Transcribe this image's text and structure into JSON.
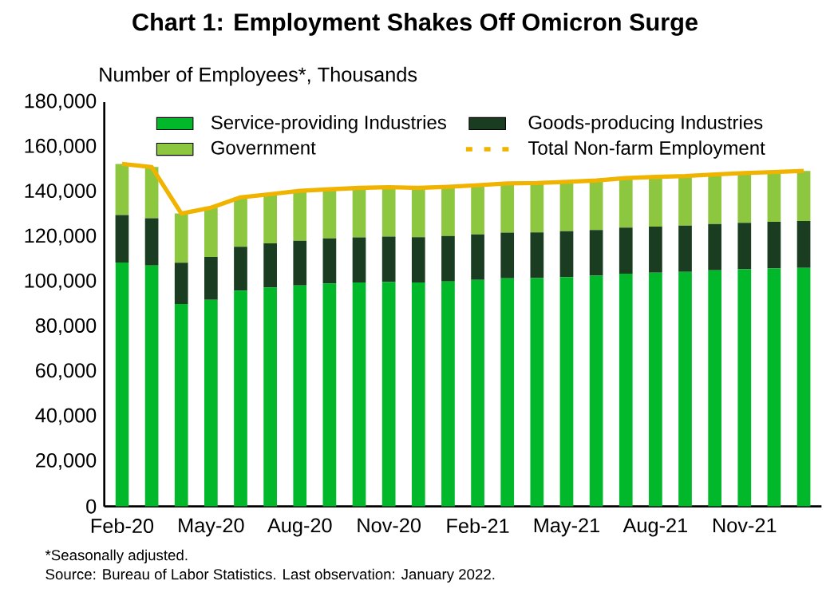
{
  "chart_data": {
    "type": "bar",
    "stacked": true,
    "title": "Chart 1: Employment Shakes Off Omicron Surge",
    "ylabel": "Number of Employees*, Thousands",
    "categories": [
      "Feb-20",
      null,
      null,
      "May-20",
      null,
      null,
      "Aug-20",
      null,
      null,
      "Nov-20",
      null,
      null,
      "Feb-21",
      null,
      null,
      "May-21",
      null,
      null,
      "Aug-21",
      null,
      null,
      "Nov-21",
      null,
      null
    ],
    "series": [
      {
        "name": "Service-providing Industries",
        "color": "#00b82a",
        "values": [
          108600,
          107300,
          90100,
          92000,
          96100,
          97500,
          98400,
          99300,
          99700,
          99900,
          99700,
          100200,
          100900,
          101600,
          101700,
          102100,
          102700,
          103600,
          104100,
          104400,
          105100,
          105600,
          105900,
          106200
        ]
      },
      {
        "name": "Goods-producing Industries",
        "color": "#1a3d22",
        "values": [
          21100,
          21000,
          18400,
          19100,
          19500,
          19600,
          19900,
          20000,
          20100,
          20200,
          20200,
          20200,
          20200,
          20300,
          20300,
          20400,
          20400,
          20500,
          20500,
          20600,
          20600,
          20700,
          20800,
          20900
        ]
      },
      {
        "name": "Government",
        "color": "#8dc63f",
        "values": [
          22800,
          22800,
          21900,
          21900,
          22000,
          21900,
          22200,
          21900,
          22000,
          22000,
          21900,
          21900,
          21900,
          21900,
          22000,
          22000,
          22000,
          22100,
          22100,
          22100,
          22100,
          22100,
          22200,
          22300
        ]
      },
      {
        "name": "Total Non-farm Employment",
        "type": "line",
        "color": "#f0b400",
        "values": [
          152500,
          151100,
          130400,
          133000,
          137600,
          139000,
          140500,
          141200,
          141800,
          142100,
          141800,
          142300,
          143000,
          143800,
          144000,
          144500,
          145100,
          146200,
          146700,
          147100,
          147800,
          148400,
          148900,
          149400
        ]
      }
    ],
    "ylim": [
      0,
      180000
    ],
    "yticks": [
      {
        "value": 0,
        "label": "0"
      },
      {
        "value": 20000,
        "label": "20,000"
      },
      {
        "value": 40000,
        "label": "40,000"
      },
      {
        "value": 60000,
        "label": "60,000"
      },
      {
        "value": 80000,
        "label": "80,000"
      },
      {
        "value": 100000,
        "label": "100,000"
      },
      {
        "value": 120000,
        "label": "120,000"
      },
      {
        "value": 140000,
        "label": "140,000"
      },
      {
        "value": 160000,
        "label": "160,000"
      },
      {
        "value": 180000,
        "label": "180,000"
      }
    ],
    "legend": "top",
    "annotations": [
      "*Seasonally adjusted.",
      "Source: Bureau of Labor Statistics. Last observation: January 2022."
    ]
  }
}
